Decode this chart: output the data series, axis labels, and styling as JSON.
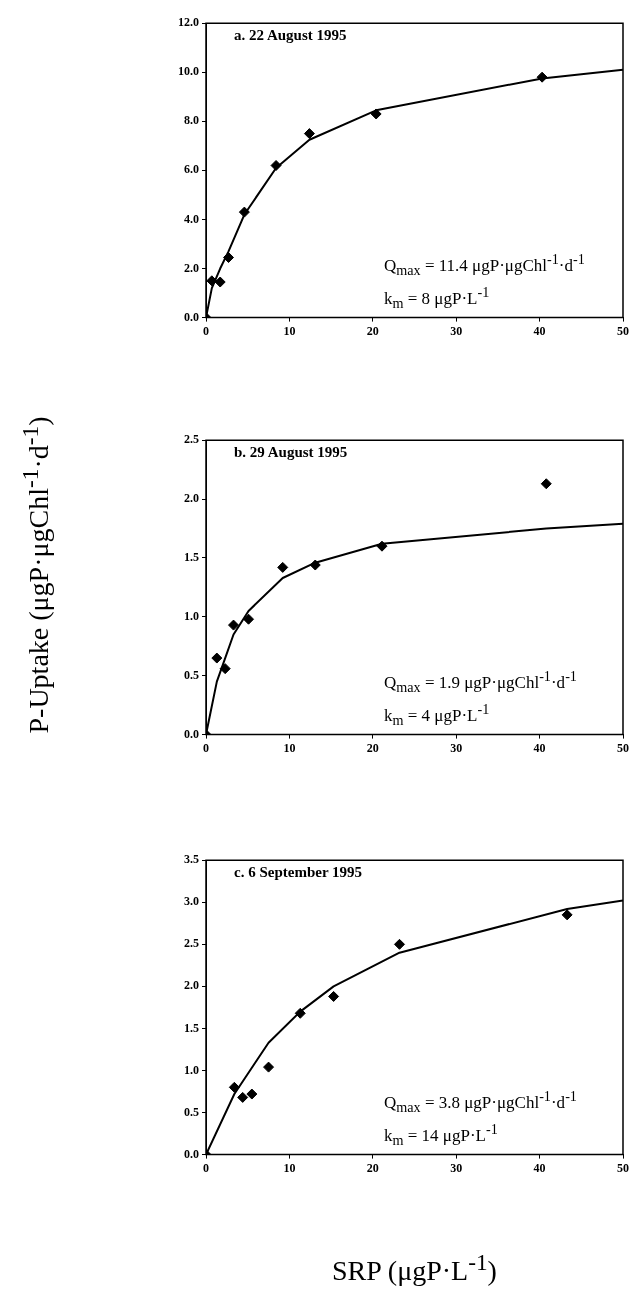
{
  "chart_data": [
    {
      "type": "scatter",
      "title": "a. 22 August 1995",
      "annotations": [
        "Q$_{max}$ = 11.4 μgP·μgChl$^{-1}$·d$^{-1}$",
        "k$_{m}$ = 8 μgP·L$^{-1}$"
      ],
      "xlim": [
        0,
        50
      ],
      "xticks": [
        0,
        10,
        20,
        30,
        40,
        50
      ],
      "ylim": [
        0,
        12
      ],
      "yticks": [
        {
          "value": 0,
          "label": "0.0"
        },
        {
          "value": 2,
          "label": "2.0"
        },
        {
          "value": 4,
          "label": "4.0"
        },
        {
          "value": 6,
          "label": "6.0"
        },
        {
          "value": 8,
          "label": "8.0"
        },
        {
          "value": 10,
          "label": "10.0"
        },
        {
          "value": 12,
          "label": "12.0"
        }
      ],
      "grid": false,
      "series": [
        {
          "type": "scatter",
          "color": "#000000",
          "marker": "diamond",
          "x": [
            0,
            0.7,
            1.7,
            2.7,
            4.6,
            8.4,
            12.4,
            20.4,
            40.3
          ],
          "values": [
            0,
            1.5,
            1.45,
            2.45,
            4.3,
            6.2,
            7.5,
            8.3,
            9.8
          ]
        },
        {
          "type": "line",
          "color": "#000000",
          "marker": "none",
          "line_style": "solid",
          "x": [
            0,
            0.7,
            1.7,
            2.7,
            4.6,
            8.4,
            12.4,
            20.4,
            40.3,
            50
          ],
          "values": [
            0,
            1.2,
            2.0,
            2.7,
            4.2,
            6.1,
            7.25,
            8.45,
            9.75,
            10.1
          ]
        }
      ]
    },
    {
      "type": "scatter",
      "title": "b. 29 August 1995",
      "ylabel": "P-Uptake (μgP·μgChl$^{-1}$·d$^{-1}$)",
      "annotations": [
        "Q$_{max}$ = 1.9 μgP·μgChl$^{-1}$·d$^{-1}$",
        "k$_{m}$ = 4 μgP·L$^{-1}$"
      ],
      "xlim": [
        0,
        50
      ],
      "xticks": [
        0,
        10,
        20,
        30,
        40,
        50
      ],
      "ylim": [
        0,
        2.5
      ],
      "yticks": [
        {
          "value": 0,
          "label": "0.0"
        },
        {
          "value": 0.5,
          "label": "0.5"
        },
        {
          "value": 1,
          "label": "1.0"
        },
        {
          "value": 1.5,
          "label": "1.5"
        },
        {
          "value": 2,
          "label": "2.0"
        },
        {
          "value": 2.5,
          "label": "2.5"
        }
      ],
      "grid": false,
      "series": [
        {
          "type": "scatter",
          "color": "#000000",
          "marker": "diamond",
          "x": [
            0,
            1.3,
            2.3,
            3.3,
            5.1,
            9.2,
            13.1,
            21.1,
            40.8
          ],
          "values": [
            0,
            0.65,
            0.56,
            0.93,
            0.98,
            1.42,
            1.44,
            1.6,
            2.13
          ]
        },
        {
          "type": "line",
          "color": "#000000",
          "marker": "none",
          "line_style": "solid",
          "x": [
            0,
            1.3,
            2.3,
            3.3,
            5.1,
            9.2,
            13.1,
            21.1,
            40.8,
            50
          ],
          "values": [
            0,
            0.45,
            0.65,
            0.85,
            1.05,
            1.33,
            1.46,
            1.62,
            1.75,
            1.79
          ]
        }
      ]
    },
    {
      "type": "scatter",
      "title": "c. 6 September 1995",
      "xlabel": "SRP (μgP·L$^{-1}$)",
      "annotations": [
        "Q$_{max}$ = 3.8 μgP·μgChl$^{-1}$·d$^{-1}$",
        "k$_{m}$ = 14 μgP·L$^{-1}$"
      ],
      "xlim": [
        0,
        50
      ],
      "xticks": [
        0,
        10,
        20,
        30,
        40,
        50
      ],
      "ylim": [
        0,
        3.5
      ],
      "yticks": [
        {
          "value": 0,
          "label": "0.0"
        },
        {
          "value": 0.5,
          "label": "0.5"
        },
        {
          "value": 1,
          "label": "1.0"
        },
        {
          "value": 1.5,
          "label": "1.5"
        },
        {
          "value": 2,
          "label": "2.0"
        },
        {
          "value": 2.5,
          "label": "2.5"
        },
        {
          "value": 3,
          "label": "3.0"
        },
        {
          "value": 3.5,
          "label": "3.5"
        }
      ],
      "grid": false,
      "series": [
        {
          "type": "scatter",
          "color": "#000000",
          "marker": "diamond",
          "x": [
            0,
            3.4,
            4.4,
            5.5,
            7.5,
            11.3,
            15.3,
            23.2,
            43.3
          ],
          "values": [
            0,
            0.8,
            0.68,
            0.72,
            1.04,
            1.68,
            1.88,
            2.5,
            2.85
          ]
        },
        {
          "type": "line",
          "color": "#000000",
          "marker": "none",
          "line_style": "solid",
          "x": [
            0,
            3.4,
            7.5,
            11.3,
            15.3,
            23.2,
            43.3,
            50
          ],
          "values": [
            0,
            0.72,
            1.33,
            1.7,
            2.0,
            2.4,
            2.92,
            3.02
          ]
        }
      ]
    }
  ]
}
